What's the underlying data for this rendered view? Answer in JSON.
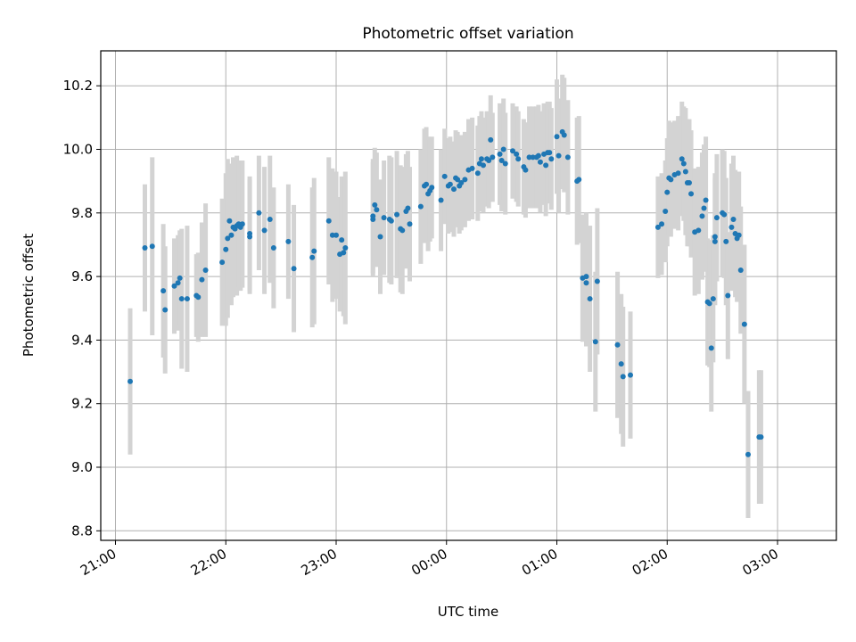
{
  "chart_data": {
    "type": "scatter",
    "title": "Photometric offset variation",
    "xlabel": "UTC time",
    "ylabel": "Photometric offset",
    "x_type": "datetime",
    "xlim": [
      "20:52",
      "03:32"
    ],
    "ylim": [
      8.77,
      10.31
    ],
    "x_ticks": [
      "21:00",
      "22:00",
      "23:00",
      "00:00",
      "01:00",
      "02:00",
      "03:00"
    ],
    "y_ticks": [
      "8.8",
      "9.0",
      "9.2",
      "9.4",
      "9.6",
      "9.8",
      "10.0",
      "10.2"
    ],
    "grid": true,
    "colors": {
      "points": "#1f77b4",
      "errorbars": "#d3d3d3",
      "grid": "#b0b0b0",
      "axes": "#000000"
    },
    "series": [
      {
        "points": [
          [
            "21:08",
            9.27,
            0.23
          ],
          [
            "21:16",
            9.69,
            0.2
          ],
          [
            "21:20",
            9.695,
            0.28
          ],
          [
            "21:26",
            9.555,
            0.21
          ],
          [
            "21:27",
            9.495,
            0.2
          ],
          [
            "21:32",
            9.57,
            0.15
          ],
          [
            "21:34",
            9.58,
            0.15
          ],
          [
            "21:35",
            9.595,
            0.15
          ],
          [
            "21:36",
            9.53,
            0.22
          ],
          [
            "21:39",
            9.53,
            0.23
          ],
          [
            "21:44",
            9.54,
            0.13
          ],
          [
            "21:45",
            9.535,
            0.14
          ],
          [
            "21:47",
            9.59,
            0.18
          ],
          [
            "21:49",
            9.62,
            0.21
          ],
          [
            "21:58",
            9.645,
            0.2
          ],
          [
            "22:00",
            9.685,
            0.24
          ],
          [
            "22:01",
            9.72,
            0.25
          ],
          [
            "22:02",
            9.775,
            0.18
          ],
          [
            "22:03",
            9.73,
            0.22
          ],
          [
            "22:04",
            9.755,
            0.22
          ],
          [
            "22:05",
            9.75,
            0.2
          ],
          [
            "22:06",
            9.76,
            0.22
          ],
          [
            "22:07",
            9.765,
            0.2
          ],
          [
            "22:08",
            9.755,
            0.2
          ],
          [
            "22:09",
            9.765,
            0.2
          ],
          [
            "22:13",
            9.725,
            0.18
          ],
          [
            "22:13",
            9.735,
            0.18
          ],
          [
            "22:18",
            9.8,
            0.18
          ],
          [
            "22:21",
            9.745,
            0.2
          ],
          [
            "22:24",
            9.78,
            0.2
          ],
          [
            "22:26",
            9.69,
            0.19
          ],
          [
            "22:34",
            9.71,
            0.18
          ],
          [
            "22:37",
            9.625,
            0.2
          ],
          [
            "22:47",
            9.66,
            0.22
          ],
          [
            "22:48",
            9.68,
            0.23
          ],
          [
            "22:56",
            9.775,
            0.2
          ],
          [
            "22:58",
            9.73,
            0.21
          ],
          [
            "23:00",
            9.73,
            0.2
          ],
          [
            "23:02",
            9.67,
            0.18
          ],
          [
            "23:03",
            9.715,
            0.2
          ],
          [
            "23:04",
            9.675,
            0.2
          ],
          [
            "23:05",
            9.69,
            0.24
          ],
          [
            "23:20",
            9.78,
            0.18
          ],
          [
            "23:20",
            9.79,
            0.18
          ],
          [
            "23:21",
            9.825,
            0.18
          ],
          [
            "23:22",
            9.81,
            0.18
          ],
          [
            "23:24",
            9.725,
            0.18
          ],
          [
            "23:26",
            9.785,
            0.18
          ],
          [
            "23:29",
            9.78,
            0.2
          ],
          [
            "23:30",
            9.775,
            0.2
          ],
          [
            "23:33",
            9.795,
            0.2
          ],
          [
            "23:35",
            9.75,
            0.2
          ],
          [
            "23:36",
            9.745,
            0.2
          ],
          [
            "23:38",
            9.805,
            0.18
          ],
          [
            "23:39",
            9.815,
            0.18
          ],
          [
            "23:40",
            9.765,
            0.18
          ],
          [
            "23:46",
            9.82,
            0.18
          ],
          [
            "23:48",
            9.885,
            0.18
          ],
          [
            "23:49",
            9.89,
            0.18
          ],
          [
            "23:50",
            9.86,
            0.18
          ],
          [
            "23:51",
            9.87,
            0.16
          ],
          [
            "23:52",
            9.88,
            0.16
          ],
          [
            "23:57",
            9.84,
            0.16
          ],
          [
            "23:59",
            9.915,
            0.15
          ],
          [
            "00:01",
            9.885,
            0.15
          ],
          [
            "00:02",
            9.89,
            0.15
          ],
          [
            "00:04",
            9.875,
            0.15
          ],
          [
            "00:05",
            9.91,
            0.15
          ],
          [
            "00:06",
            9.905,
            0.15
          ],
          [
            "00:07",
            9.885,
            0.15
          ],
          [
            "00:08",
            9.895,
            0.15
          ],
          [
            "00:10",
            9.905,
            0.15
          ],
          [
            "00:12",
            9.935,
            0.16
          ],
          [
            "00:14",
            9.94,
            0.16
          ],
          [
            "00:17",
            9.925,
            0.15
          ],
          [
            "00:18",
            9.955,
            0.15
          ],
          [
            "00:19",
            9.97,
            0.15
          ],
          [
            "00:20",
            9.95,
            0.15
          ],
          [
            "00:22",
            9.97,
            0.15
          ],
          [
            "00:23",
            9.965,
            0.15
          ],
          [
            "00:24",
            10.03,
            0.14
          ],
          [
            "00:25",
            9.975,
            0.14
          ],
          [
            "00:29",
            9.985,
            0.16
          ],
          [
            "00:30",
            9.965,
            0.16
          ],
          [
            "00:31",
            10.0,
            0.16
          ],
          [
            "00:32",
            9.955,
            0.16
          ],
          [
            "00:36",
            9.995,
            0.15
          ],
          [
            "00:38",
            9.985,
            0.15
          ],
          [
            "00:39",
            9.97,
            0.15
          ],
          [
            "00:42",
            9.945,
            0.15
          ],
          [
            "00:43",
            9.935,
            0.15
          ],
          [
            "00:45",
            9.975,
            0.16
          ],
          [
            "00:47",
            9.975,
            0.16
          ],
          [
            "00:49",
            9.975,
            0.16
          ],
          [
            "00:50",
            9.98,
            0.16
          ],
          [
            "00:51",
            9.96,
            0.16
          ],
          [
            "00:53",
            9.985,
            0.16
          ],
          [
            "00:54",
            9.95,
            0.16
          ],
          [
            "00:55",
            9.99,
            0.16
          ],
          [
            "00:56",
            9.99,
            0.16
          ],
          [
            "00:57",
            9.97,
            0.16
          ],
          [
            "01:00",
            10.04,
            0.18
          ],
          [
            "01:01",
            9.98,
            0.18
          ],
          [
            "01:03",
            10.055,
            0.18
          ],
          [
            "01:04",
            10.045,
            0.18
          ],
          [
            "01:06",
            9.975,
            0.18
          ],
          [
            "01:11",
            9.9,
            0.2
          ],
          [
            "01:12",
            9.905,
            0.2
          ],
          [
            "01:14",
            9.595,
            0.2
          ],
          [
            "01:16",
            9.6,
            0.2
          ],
          [
            "01:16",
            9.58,
            0.2
          ],
          [
            "01:18",
            9.53,
            0.23
          ],
          [
            "01:21",
            9.395,
            0.22
          ],
          [
            "01:22",
            9.585,
            0.23
          ],
          [
            "01:33",
            9.385,
            0.23
          ],
          [
            "01:35",
            9.325,
            0.22
          ],
          [
            "01:36",
            9.285,
            0.22
          ],
          [
            "01:40",
            9.29,
            0.2
          ],
          [
            "01:55",
            9.755,
            0.16
          ],
          [
            "01:57",
            9.765,
            0.16
          ],
          [
            "01:59",
            9.805,
            0.16
          ],
          [
            "02:00",
            9.865,
            0.17
          ],
          [
            "02:01",
            9.91,
            0.18
          ],
          [
            "02:02",
            9.905,
            0.18
          ],
          [
            "02:04",
            9.92,
            0.17
          ],
          [
            "02:06",
            9.925,
            0.18
          ],
          [
            "02:08",
            9.97,
            0.18
          ],
          [
            "02:09",
            9.955,
            0.18
          ],
          [
            "02:10",
            9.93,
            0.2
          ],
          [
            "02:11",
            9.895,
            0.2
          ],
          [
            "02:12",
            9.895,
            0.2
          ],
          [
            "02:13",
            9.86,
            0.2
          ],
          [
            "02:15",
            9.74,
            0.2
          ],
          [
            "02:17",
            9.745,
            0.2
          ],
          [
            "02:19",
            9.79,
            0.2
          ],
          [
            "02:20",
            9.815,
            0.2
          ],
          [
            "02:21",
            9.84,
            0.2
          ],
          [
            "02:22",
            9.52,
            0.2
          ],
          [
            "02:23",
            9.515,
            0.2
          ],
          [
            "02:24",
            9.375,
            0.2
          ],
          [
            "02:25",
            9.53,
            0.2
          ],
          [
            "02:26",
            9.725,
            0.2
          ],
          [
            "02:26",
            9.71,
            0.2
          ],
          [
            "02:27",
            9.785,
            0.2
          ],
          [
            "02:30",
            9.8,
            0.2
          ],
          [
            "02:31",
            9.795,
            0.2
          ],
          [
            "02:32",
            9.71,
            0.2
          ],
          [
            "02:33",
            9.54,
            0.2
          ],
          [
            "02:35",
            9.755,
            0.2
          ],
          [
            "02:36",
            9.78,
            0.2
          ],
          [
            "02:37",
            9.735,
            0.2
          ],
          [
            "02:38",
            9.72,
            0.2
          ],
          [
            "02:39",
            9.73,
            0.2
          ],
          [
            "02:40",
            9.62,
            0.2
          ],
          [
            "02:42",
            9.45,
            0.25
          ],
          [
            "02:44",
            9.04,
            0.2
          ],
          [
            "02:50",
            9.095,
            0.21
          ],
          [
            "02:51",
            9.095,
            0.21
          ]
        ]
      }
    ]
  }
}
